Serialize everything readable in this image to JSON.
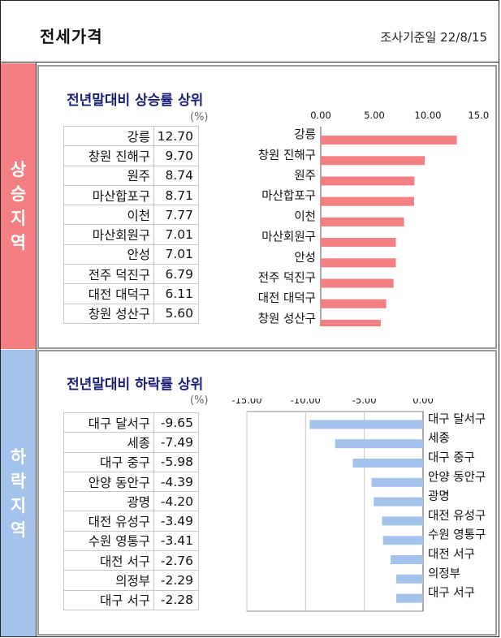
{
  "header": {
    "title": "전세가격",
    "survey_date": "조사기준일 22/8/15"
  },
  "rise": {
    "side_label": [
      "상",
      "승",
      "지",
      "역"
    ],
    "title": "전년말대비 상승률 상위",
    "unit": "(%)",
    "rows": [
      {
        "name": "강릉",
        "value": "12.70"
      },
      {
        "name": "창원 진해구",
        "value": "9.70"
      },
      {
        "name": "원주",
        "value": "8.74"
      },
      {
        "name": "마산합포구",
        "value": "8.71"
      },
      {
        "name": "이천",
        "value": "7.77"
      },
      {
        "name": "마산회원구",
        "value": "7.01"
      },
      {
        "name": "안성",
        "value": "7.01"
      },
      {
        "name": "전주 덕진구",
        "value": "6.79"
      },
      {
        "name": "대전 대덕구",
        "value": "6.11"
      },
      {
        "name": "창원 성산구",
        "value": "5.60"
      }
    ]
  },
  "fall": {
    "side_label": [
      "하",
      "락",
      "지",
      "역"
    ],
    "title": "전년말대비 하락률 상위",
    "unit": "(%)",
    "rows": [
      {
        "name": "대구 달서구",
        "value": "-9.65"
      },
      {
        "name": "세종",
        "value": "-7.49"
      },
      {
        "name": "대구 중구",
        "value": "-5.98"
      },
      {
        "name": "안양 동안구",
        "value": "-4.39"
      },
      {
        "name": "광명",
        "value": "-4.20"
      },
      {
        "name": "대전 유성구",
        "value": "-3.49"
      },
      {
        "name": "수원 영통구",
        "value": "-3.41"
      },
      {
        "name": "대전 서구",
        "value": "-2.76"
      },
      {
        "name": "의정부",
        "value": "-2.29"
      },
      {
        "name": "대구 서구",
        "value": "-2.28"
      }
    ]
  },
  "chart_data": [
    {
      "type": "bar",
      "orientation": "horizontal",
      "categories": [
        "강릉",
        "창원 진해구",
        "원주",
        "마산합포구",
        "이천",
        "마산회원구",
        "안성",
        "전주 덕진구",
        "대전 대덕구",
        "창원 성산구"
      ],
      "values": [
        12.7,
        9.7,
        8.74,
        8.71,
        7.77,
        7.01,
        7.01,
        6.79,
        6.11,
        5.6
      ],
      "xlim": [
        0,
        15
      ],
      "ticks": [
        "0.00",
        "5.00",
        "10.00",
        "15.00"
      ],
      "tick_values": [
        0,
        5,
        10,
        15
      ],
      "bar_color": "#f47f83",
      "axis_position": "top",
      "category_labels": "left"
    },
    {
      "type": "bar",
      "orientation": "horizontal",
      "categories": [
        "대구 달서구",
        "세종",
        "대구 중구",
        "안양 동안구",
        "광명",
        "대전 유성구",
        "수원 영통구",
        "대전 서구",
        "의정부",
        "대구 서구"
      ],
      "values": [
        -9.65,
        -7.49,
        -5.98,
        -4.39,
        -4.2,
        -3.49,
        -3.41,
        -2.76,
        -2.29,
        -2.28
      ],
      "xlim": [
        -15,
        0
      ],
      "ticks": [
        "-15.00",
        "-10.00",
        "-5.00",
        "0.00"
      ],
      "tick_values": [
        -15,
        -10,
        -5,
        0
      ],
      "bar_color": "#a4c3ec",
      "axis_position": "top",
      "category_labels": "right",
      "grid": true
    }
  ]
}
